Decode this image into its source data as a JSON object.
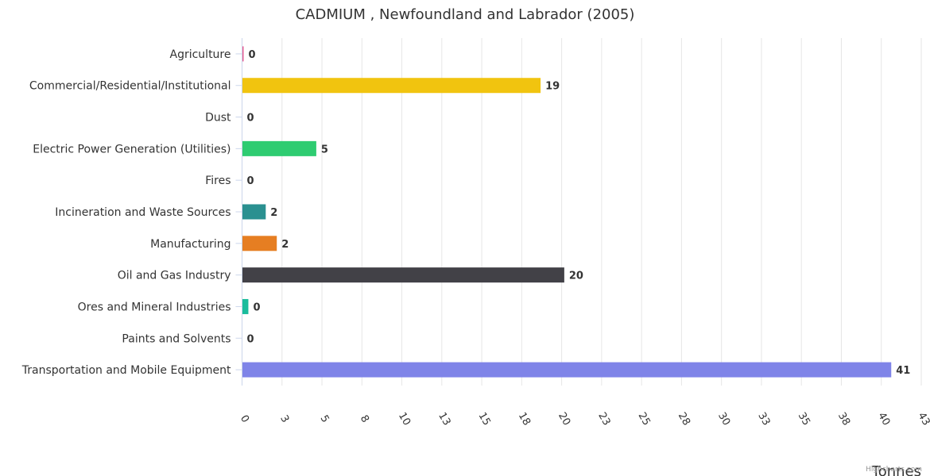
{
  "chart_data": {
    "type": "bar",
    "orientation": "horizontal",
    "title": "CADMIUM , Newfoundland and Labrador (2005)",
    "xlabel": "Tonnes",
    "ylabel": "",
    "xlim": [
      0,
      43
    ],
    "grid": true,
    "ticks": [
      "0",
      "3",
      "5",
      "8",
      "10",
      "13",
      "15",
      "18",
      "20",
      "23",
      "25",
      "28",
      "30",
      "33",
      "35",
      "38",
      "40",
      "43"
    ],
    "categories": [
      "Agriculture",
      "Commercial/Residential/Institutional",
      "Dust",
      "Electric Power Generation (Utilities)",
      "Fires",
      "Incineration and Waste Sources",
      "Manufacturing",
      "Oil and Gas Industry",
      "Ores and Mineral Industries",
      "Paints and Solvents",
      "Transportation and Mobile Equipment"
    ],
    "values": [
      0.1,
      18.9,
      0,
      4.7,
      0,
      1.5,
      2.2,
      20.4,
      0.4,
      0,
      41.1
    ],
    "labels": [
      "0",
      "19",
      "0",
      "5",
      "0",
      "2",
      "2",
      "20",
      "0",
      "0",
      "41"
    ],
    "colors": [
      "#e75f94",
      "#f1c40f",
      "#3f51b5",
      "#2ecc71",
      "#9b59b6",
      "#2a9090",
      "#e67e22",
      "#424147",
      "#1abc9c",
      "#95a5a6",
      "#7f84e8"
    ]
  },
  "credits": "Highcharts.com"
}
